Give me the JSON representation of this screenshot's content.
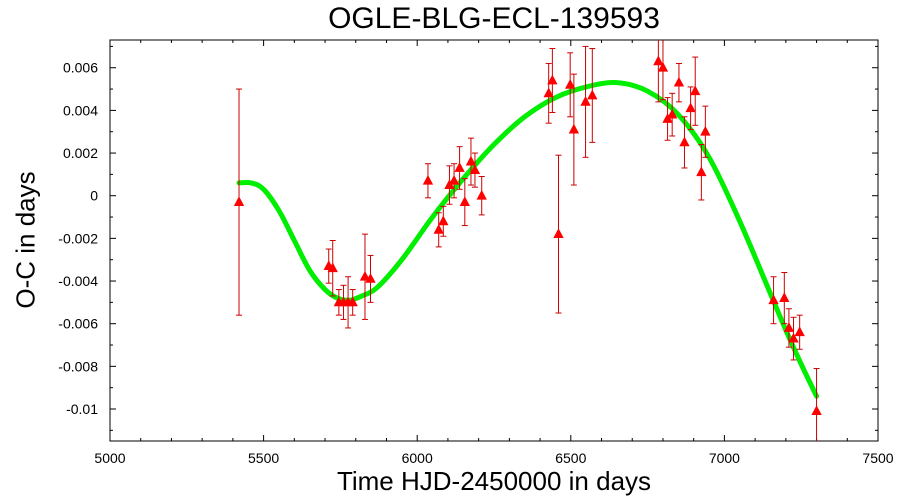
{
  "chart_data": {
    "type": "scatter",
    "title": "OGLE-BLG-ECL-139593",
    "xlabel": "Time HJD-2450000 in days",
    "ylabel": "O-C in days",
    "xlim": [
      5000,
      7500
    ],
    "ylim": [
      -0.0115,
      0.0073
    ],
    "xticks": [
      5000,
      5500,
      6000,
      6500,
      7000,
      7500
    ],
    "xtick_labels": [
      "5000",
      "5500",
      "6000",
      "6500",
      "7000",
      "7500"
    ],
    "yticks": [
      0.006,
      0.004,
      0.002,
      0,
      -0.002,
      -0.004,
      -0.006,
      -0.008,
      -0.01
    ],
    "ytick_labels": [
      "0.006",
      "0.004",
      "0.002",
      "0",
      "-0.002",
      "-0.004",
      "-0.006",
      "-0.008",
      "-0.01"
    ],
    "grid": false,
    "colors": {
      "points": "#ff0000",
      "errorbars": "#cc0000",
      "fit": "#00ee00"
    },
    "series": [
      {
        "kind": "points",
        "marker": "triangle",
        "points": [
          {
            "x": 5420,
            "y": -0.0003,
            "err": 0.0053
          },
          {
            "x": 5712,
            "y": -0.0033,
            "err": 0.0008
          },
          {
            "x": 5725,
            "y": -0.0034,
            "err": 0.0013
          },
          {
            "x": 5745,
            "y": -0.005,
            "err": 0.0006
          },
          {
            "x": 5760,
            "y": -0.005,
            "err": 0.0008
          },
          {
            "x": 5775,
            "y": -0.005,
            "err": 0.0012
          },
          {
            "x": 5790,
            "y": -0.005,
            "err": 0.0006
          },
          {
            "x": 5830,
            "y": -0.0038,
            "err": 0.002
          },
          {
            "x": 5848,
            "y": -0.0039,
            "err": 0.0011
          },
          {
            "x": 6035,
            "y": 0.0007,
            "err": 0.0008
          },
          {
            "x": 6070,
            "y": -0.0016,
            "err": 0.0008
          },
          {
            "x": 6085,
            "y": -0.0012,
            "err": 0.0007
          },
          {
            "x": 6105,
            "y": 0.0005,
            "err": 0.0009
          },
          {
            "x": 6120,
            "y": 0.0007,
            "err": 0.0008
          },
          {
            "x": 6138,
            "y": 0.0013,
            "err": 0.001
          },
          {
            "x": 6155,
            "y": -0.0003,
            "err": 0.0011
          },
          {
            "x": 6175,
            "y": 0.0016,
            "err": 0.0011
          },
          {
            "x": 6188,
            "y": 0.0012,
            "err": 0.0008
          },
          {
            "x": 6210,
            "y": 0.0,
            "err": 0.0009
          },
          {
            "x": 6428,
            "y": 0.0048,
            "err": 0.0014
          },
          {
            "x": 6440,
            "y": 0.0054,
            "err": 0.0015
          },
          {
            "x": 6460,
            "y": -0.0018,
            "err": 0.0037
          },
          {
            "x": 6498,
            "y": 0.0052,
            "err": 0.0015
          },
          {
            "x": 6510,
            "y": 0.0031,
            "err": 0.0026
          },
          {
            "x": 6548,
            "y": 0.0044,
            "err": 0.0026
          },
          {
            "x": 6570,
            "y": 0.0047,
            "err": 0.0022
          },
          {
            "x": 6785,
            "y": 0.0063,
            "err": 0.0019
          },
          {
            "x": 6800,
            "y": 0.006,
            "err": 0.0015
          },
          {
            "x": 6815,
            "y": 0.0036,
            "err": 0.001
          },
          {
            "x": 6830,
            "y": 0.0038,
            "err": 0.001
          },
          {
            "x": 6852,
            "y": 0.0053,
            "err": 0.0009
          },
          {
            "x": 6870,
            "y": 0.0025,
            "err": 0.0012
          },
          {
            "x": 6890,
            "y": 0.0041,
            "err": 0.001
          },
          {
            "x": 6905,
            "y": 0.0049,
            "err": 0.0016
          },
          {
            "x": 6925,
            "y": 0.0011,
            "err": 0.0013
          },
          {
            "x": 6938,
            "y": 0.003,
            "err": 0.0012
          },
          {
            "x": 7160,
            "y": -0.0049,
            "err": 0.0011
          },
          {
            "x": 7195,
            "y": -0.0048,
            "err": 0.0012
          },
          {
            "x": 7210,
            "y": -0.0062,
            "err": 0.0009
          },
          {
            "x": 7225,
            "y": -0.0067,
            "err": 0.001
          },
          {
            "x": 7245,
            "y": -0.0064,
            "err": 0.0008
          },
          {
            "x": 7300,
            "y": -0.0101,
            "err": 0.002
          }
        ]
      },
      {
        "kind": "fit-line",
        "points": [
          {
            "x": 5420,
            "y": 0.0006
          },
          {
            "x": 5460,
            "y": 0.0006
          },
          {
            "x": 5500,
            "y": 0.0003
          },
          {
            "x": 5550,
            "y": -0.0007
          },
          {
            "x": 5600,
            "y": -0.0021
          },
          {
            "x": 5650,
            "y": -0.0035
          },
          {
            "x": 5700,
            "y": -0.0044
          },
          {
            "x": 5740,
            "y": -0.0048
          },
          {
            "x": 5780,
            "y": -0.0049
          },
          {
            "x": 5820,
            "y": -0.0047
          },
          {
            "x": 5870,
            "y": -0.0043
          },
          {
            "x": 5950,
            "y": -0.003
          },
          {
            "x": 6050,
            "y": -0.001
          },
          {
            "x": 6150,
            "y": 0.0008
          },
          {
            "x": 6250,
            "y": 0.0024
          },
          {
            "x": 6350,
            "y": 0.0037
          },
          {
            "x": 6450,
            "y": 0.0046
          },
          {
            "x": 6550,
            "y": 0.0051
          },
          {
            "x": 6650,
            "y": 0.0053
          },
          {
            "x": 6750,
            "y": 0.0049
          },
          {
            "x": 6850,
            "y": 0.0038
          },
          {
            "x": 6950,
            "y": 0.0018
          },
          {
            "x": 7050,
            "y": -0.0012
          },
          {
            "x": 7150,
            "y": -0.0046
          },
          {
            "x": 7200,
            "y": -0.0063
          },
          {
            "x": 7250,
            "y": -0.0079
          },
          {
            "x": 7300,
            "y": -0.0094
          }
        ]
      }
    ]
  }
}
